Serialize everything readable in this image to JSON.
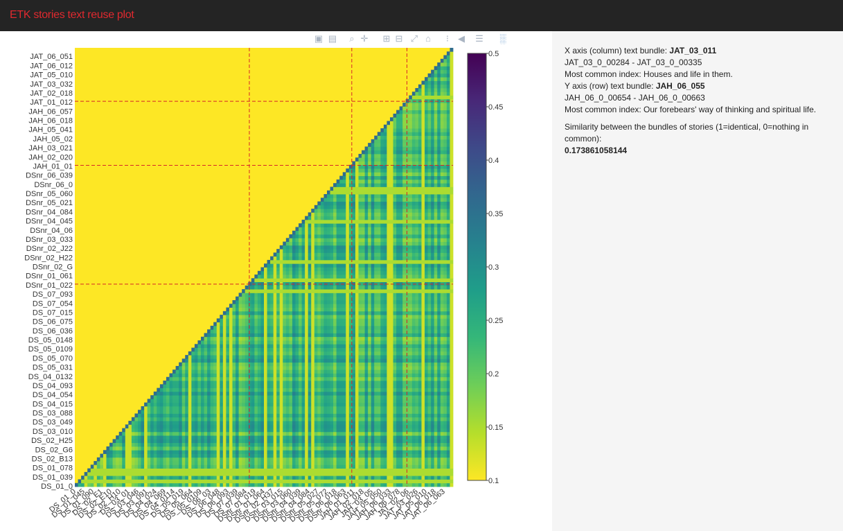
{
  "app": {
    "title": "ETK stories text reuse plot"
  },
  "modebar": {
    "buttons": [
      {
        "name": "camera-icon",
        "glyph": "▣"
      },
      {
        "name": "save-icon",
        "glyph": "▤"
      },
      {
        "name": "zoom-icon",
        "glyph": "⌕"
      },
      {
        "name": "pan-icon",
        "glyph": "✛"
      },
      {
        "name": "zoom-in-icon",
        "glyph": "⊞"
      },
      {
        "name": "zoom-out-icon",
        "glyph": "⊟"
      },
      {
        "name": "autoscale-icon",
        "glyph": "⤢"
      },
      {
        "name": "home-icon",
        "glyph": "⌂"
      },
      {
        "name": "spike-lines-icon",
        "glyph": "⁝"
      },
      {
        "name": "hover-closest-icon",
        "glyph": "◀"
      },
      {
        "name": "hover-compare-icon",
        "glyph": "☰"
      },
      {
        "name": "plotly-logo-icon",
        "glyph": "░"
      }
    ]
  },
  "info": {
    "x_label": "X axis (column) text bundle: ",
    "x_bundle": "JAT_03_011",
    "x_range": "JAT_03_0_00284 - JAT_03_0_00335",
    "x_index": "Most common index: Houses and life in them.",
    "y_label": "Y axis (row) text bundle: ",
    "y_bundle": "JAH_06_055",
    "y_range": "JAH_06_0_00654 - JAH_06_0_00663",
    "y_index": "Most common index: Our forebears' way of thinking and spiritual life.",
    "similarity_label": "Similarity between the bundles of stories (1=identical, 0=nothing in common):",
    "similarity_value": "0.173861058144"
  },
  "chart_data": {
    "type": "heatmap",
    "y_tick_labels": [
      "DS_01_0",
      "DS_01_039",
      "DS_01_078",
      "DS_02_B13",
      "DS_02_G6",
      "DS_02_H25",
      "DS_03_010",
      "DS_03_049",
      "DS_03_088",
      "DS_04_015",
      "DS_04_054",
      "DS_04_093",
      "DS_04_0132",
      "DS_05_031",
      "DS_05_070",
      "DS_05_0109",
      "DS_05_0148",
      "DS_06_036",
      "DS_06_075",
      "DS_07_015",
      "DS_07_054",
      "DS_07_093",
      "DSnr_01_022",
      "DSnr_01_061",
      "DSnr_02_G",
      "DSnr_02_H22",
      "DSnr_02_J22",
      "DSnr_03_033",
      "DSnr_04_06",
      "DSnr_04_045",
      "DSnr_04_084",
      "DSnr_05_021",
      "DSnr_05_060",
      "DSnr_06_0",
      "DSnr_06_039",
      "JAH_01_01",
      "JAH_02_020",
      "JAH_03_021",
      "JAH_05_02",
      "JAH_05_041",
      "JAH_06_018",
      "JAH_06_057",
      "JAT_01_012",
      "JAT_02_018",
      "JAT_03_032",
      "JAT_05_010",
      "JAT_06_012",
      "JAT_06_051"
    ],
    "x_tick_labels": [
      "DS_01_0",
      "DS_01_045",
      "DS_01_090",
      "DS_02_E1",
      "DS_02_E10",
      "DS_02_H10",
      "DS_03_01",
      "DS_03_046",
      "DS_03_091",
      "DS_04_024",
      "DS_04_069",
      "DS_04_0114",
      "DS_05_019",
      "DS_05_064",
      "DS_05_0109",
      "DS_06_03",
      "DS_06_048",
      "DS_06_093",
      "DS_07_039",
      "DS_07_084",
      "DSnr_01_019",
      "DSnr_01_064",
      "DSnr_02_H37",
      "DSnr_03_015",
      "DSnr_03_060",
      "DSnr_04_039",
      "DSnr_04_084",
      "DSnr_05_027",
      "DSnr_05_072",
      "DSnr_06_018",
      "DSnr_06_063",
      "JAH_01_011",
      "JAH_02_018",
      "JAH_03_05",
      "JAH_05_050",
      "JAH_06_033",
      "JAH_06_078",
      "JAT_02_06",
      "JAT_03_026",
      "JAT_05_010",
      "JAT_06_018",
      "JAT_06_063"
    ],
    "colorbar": {
      "min": 0.1,
      "max": 0.5,
      "ticks": [
        "0.1",
        "0.15",
        "0.2",
        "0.25",
        "0.3",
        "0.35",
        "0.4",
        "0.45",
        "0.5"
      ],
      "colorscale": "Viridis (reversed)"
    },
    "group_boundaries": [
      "DSnr_01_022",
      "JAH_01_01",
      "JAT_01_012"
    ],
    "lower_triangle_value": 0.1,
    "upper_triangle_typical_range": [
      0.15,
      0.36
    ],
    "boundary_line_color": "#d62728"
  }
}
